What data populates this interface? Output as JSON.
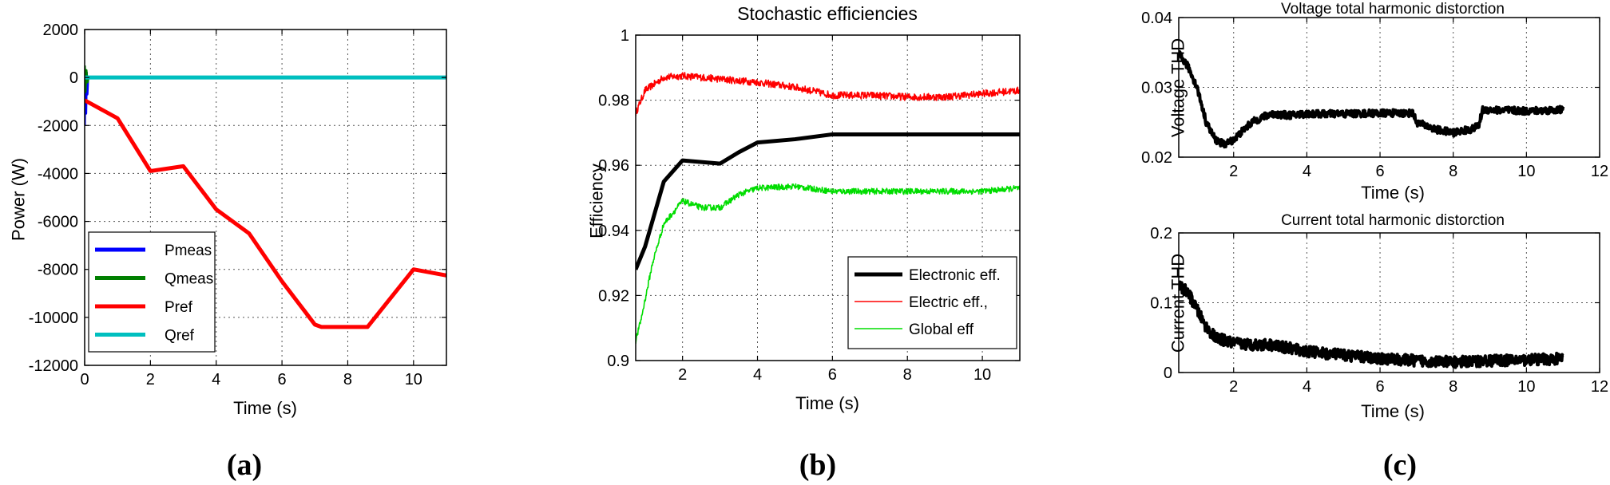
{
  "chart_data": [
    {
      "type": "line",
      "panel_label": "(a)",
      "title": "",
      "xlabel": "Time (s)",
      "ylabel": "Power (W)",
      "xlim": [
        0,
        11
      ],
      "ylim": [
        -12000,
        2000
      ],
      "xticks": [
        0,
        2,
        4,
        6,
        8,
        10
      ],
      "yticks": [
        2000,
        0,
        -2000,
        -4000,
        -6000,
        -8000,
        -10000,
        -12000
      ],
      "xtick_labels": [
        "0",
        "2",
        "4",
        "6",
        "8",
        "10"
      ],
      "ytick_labels": [
        "2000",
        "0",
        "-2000",
        "-4000",
        "-6000",
        "-8000",
        "-10000",
        "-12000"
      ],
      "legend": "bottom-left",
      "series": [
        {
          "name": "Pmeas",
          "color": "#0000ff",
          "x": [
            0,
            0.02,
            0.04,
            0.06,
            0.08,
            0.1
          ],
          "y": [
            -2000,
            300,
            -1500,
            200,
            -700,
            0
          ]
        },
        {
          "name": "Qmeas",
          "color": "#007f00",
          "x": [
            0,
            0.02,
            0.05,
            0.08,
            0.12
          ],
          "y": [
            500,
            -600,
            300,
            -200,
            0
          ]
        },
        {
          "name": "Pref",
          "color": "#ff0000",
          "x": [
            0,
            1,
            2,
            3,
            4,
            5,
            6,
            7,
            7.2,
            8.6,
            10,
            11
          ],
          "y": [
            -950,
            -1700,
            -3900,
            -3700,
            -5500,
            -6500,
            -8500,
            -10300,
            -10400,
            -10400,
            -8000,
            -8250
          ]
        },
        {
          "name": "Qref",
          "color": "#00bfbf",
          "x": [
            0,
            11
          ],
          "y": [
            0,
            0
          ]
        }
      ]
    },
    {
      "type": "line",
      "panel_label": "(b)",
      "title": "Stochastic efficiencies",
      "xlabel": "Time (s)",
      "ylabel": "Efficiency",
      "xlim": [
        0.75,
        11
      ],
      "ylim": [
        0.9,
        1.0
      ],
      "xticks": [
        2,
        4,
        6,
        8,
        10
      ],
      "yticks": [
        0.9,
        0.92,
        0.94,
        0.96,
        0.98,
        1.0
      ],
      "xtick_labels": [
        "2",
        "4",
        "6",
        "8",
        "10"
      ],
      "ytick_labels": [
        "0.9",
        "0.92",
        "0.94",
        "0.96",
        "0.98",
        "1"
      ],
      "legend": "bottom-right",
      "series": [
        {
          "name": "Electronic eff.",
          "color": "#000000",
          "x": [
            0.75,
            1.0,
            1.5,
            2.0,
            3.0,
            3.5,
            4.0,
            5.0,
            6.0,
            7.0,
            8.0,
            9.0,
            10.0,
            11.0
          ],
          "y": [
            0.928,
            0.935,
            0.955,
            0.9615,
            0.9605,
            0.964,
            0.967,
            0.968,
            0.9695,
            0.9695,
            0.9695,
            0.9695,
            0.9695,
            0.9695
          ]
        },
        {
          "name": "Electric eff.,",
          "color": "#ff0000",
          "x": [
            0.75,
            1.0,
            1.5,
            2.0,
            3.0,
            4.0,
            5.0,
            6.0,
            7.0,
            8.0,
            9.0,
            10.0,
            11.0
          ],
          "y": [
            0.976,
            0.983,
            0.987,
            0.9875,
            0.9865,
            0.9855,
            0.984,
            0.9815,
            0.9815,
            0.981,
            0.981,
            0.982,
            0.983
          ]
        },
        {
          "name": "Global eff",
          "color": "#00dd00",
          "x": [
            0.75,
            0.9,
            1.2,
            1.5,
            2.0,
            2.5,
            3.0,
            3.5,
            4.0,
            5.0,
            6.0,
            7.0,
            8.0,
            9.0,
            10.0,
            11.0
          ],
          "y": [
            0.906,
            0.913,
            0.93,
            0.942,
            0.949,
            0.947,
            0.947,
            0.951,
            0.953,
            0.9535,
            0.952,
            0.952,
            0.952,
            0.952,
            0.952,
            0.953
          ]
        }
      ]
    },
    {
      "type": "line",
      "panel_label": "(c)",
      "title": "Voltage total harmonic distorction",
      "xlabel": "Time (s)",
      "ylabel": "Voltage THD",
      "xlim": [
        0.5,
        12
      ],
      "ylim": [
        0.02,
        0.04
      ],
      "xticks": [
        2,
        4,
        6,
        8,
        10,
        12
      ],
      "yticks": [
        0.02,
        0.03,
        0.04
      ],
      "xtick_labels": [
        "2",
        "4",
        "6",
        "8",
        "10",
        "12"
      ],
      "ytick_labels": [
        "0.02",
        "0.03",
        "0.04"
      ],
      "series": [
        {
          "name": "Voltage THD",
          "color": "#000000",
          "x": [
            0.5,
            0.75,
            1.0,
            1.25,
            1.5,
            1.75,
            2.0,
            2.25,
            2.5,
            3.0,
            3.5,
            4.0,
            5.0,
            6.0,
            6.9,
            7.0,
            7.5,
            8.0,
            8.5,
            8.7,
            8.8,
            9.5,
            10.0,
            11.0
          ],
          "y": [
            0.0348,
            0.033,
            0.03,
            0.025,
            0.0225,
            0.0218,
            0.0225,
            0.0238,
            0.025,
            0.0262,
            0.026,
            0.0262,
            0.0262,
            0.0263,
            0.0263,
            0.025,
            0.024,
            0.0235,
            0.024,
            0.0245,
            0.0268,
            0.0267,
            0.0266,
            0.0268
          ]
        }
      ]
    },
    {
      "type": "line",
      "panel_label": "",
      "title": "Current total harmonic distorction",
      "xlabel": "Time (s)",
      "ylabel": "Current THD",
      "xlim": [
        0.5,
        12
      ],
      "ylim": [
        0,
        0.2
      ],
      "xticks": [
        2,
        4,
        6,
        8,
        10,
        12
      ],
      "yticks": [
        0,
        0.1,
        0.2
      ],
      "xtick_labels": [
        "2",
        "4",
        "6",
        "8",
        "10",
        "12"
      ],
      "ytick_labels": [
        "0",
        "0.1",
        "0.2"
      ],
      "series": [
        {
          "name": "Current THD",
          "color": "#000000",
          "x": [
            0.5,
            0.75,
            1.0,
            1.25,
            1.5,
            2.0,
            2.5,
            3.0,
            3.5,
            4.0,
            5.0,
            6.0,
            7.0,
            8.0,
            9.0,
            10.0,
            11.0
          ],
          "y": [
            0.125,
            0.115,
            0.09,
            0.065,
            0.05,
            0.042,
            0.04,
            0.04,
            0.035,
            0.03,
            0.025,
            0.02,
            0.017,
            0.015,
            0.017,
            0.018,
            0.02
          ]
        }
      ]
    }
  ]
}
